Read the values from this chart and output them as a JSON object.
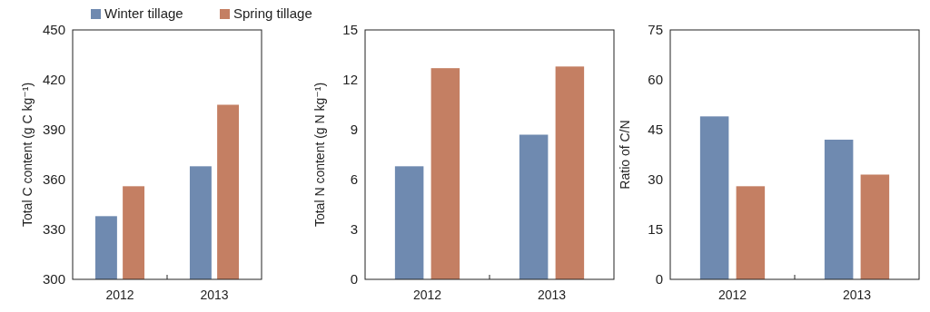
{
  "chart_data": [
    {
      "type": "bar",
      "categories": [
        "2012",
        "2013"
      ],
      "ylabel": "Total C content (g C kg⁻¹)",
      "ylim": [
        300,
        450
      ],
      "yticks": [
        300,
        330,
        360,
        390,
        420,
        450
      ],
      "grid": false,
      "legend": "top",
      "series": [
        {
          "name": "Winter tillage",
          "color": "#6f8ab0",
          "values": [
            338,
            368
          ]
        },
        {
          "name": "Spring tillage",
          "color": "#c47f63",
          "values": [
            356,
            405
          ]
        }
      ]
    },
    {
      "type": "bar",
      "categories": [
        "2012",
        "2013"
      ],
      "ylabel": "Total N content (g N kg⁻¹)",
      "ylim": [
        0,
        15
      ],
      "yticks": [
        0,
        3,
        6,
        9,
        12,
        15
      ],
      "grid": false,
      "legend": false,
      "series": [
        {
          "color": "#6f8ab0",
          "values": [
            6.8,
            8.7
          ]
        },
        {
          "color": "#c47f63",
          "values": [
            12.7,
            12.8
          ]
        }
      ]
    },
    {
      "type": "bar",
      "categories": [
        "2012",
        "2013"
      ],
      "ylabel": "Ratio of C/N",
      "ylim": [
        0,
        75
      ],
      "yticks": [
        0,
        15,
        30,
        45,
        60,
        75
      ],
      "grid": false,
      "legend": false,
      "series": [
        {
          "color": "#6f8ab0",
          "values": [
            49,
            42
          ]
        },
        {
          "color": "#c47f63",
          "values": [
            28,
            31.5
          ]
        }
      ]
    }
  ]
}
